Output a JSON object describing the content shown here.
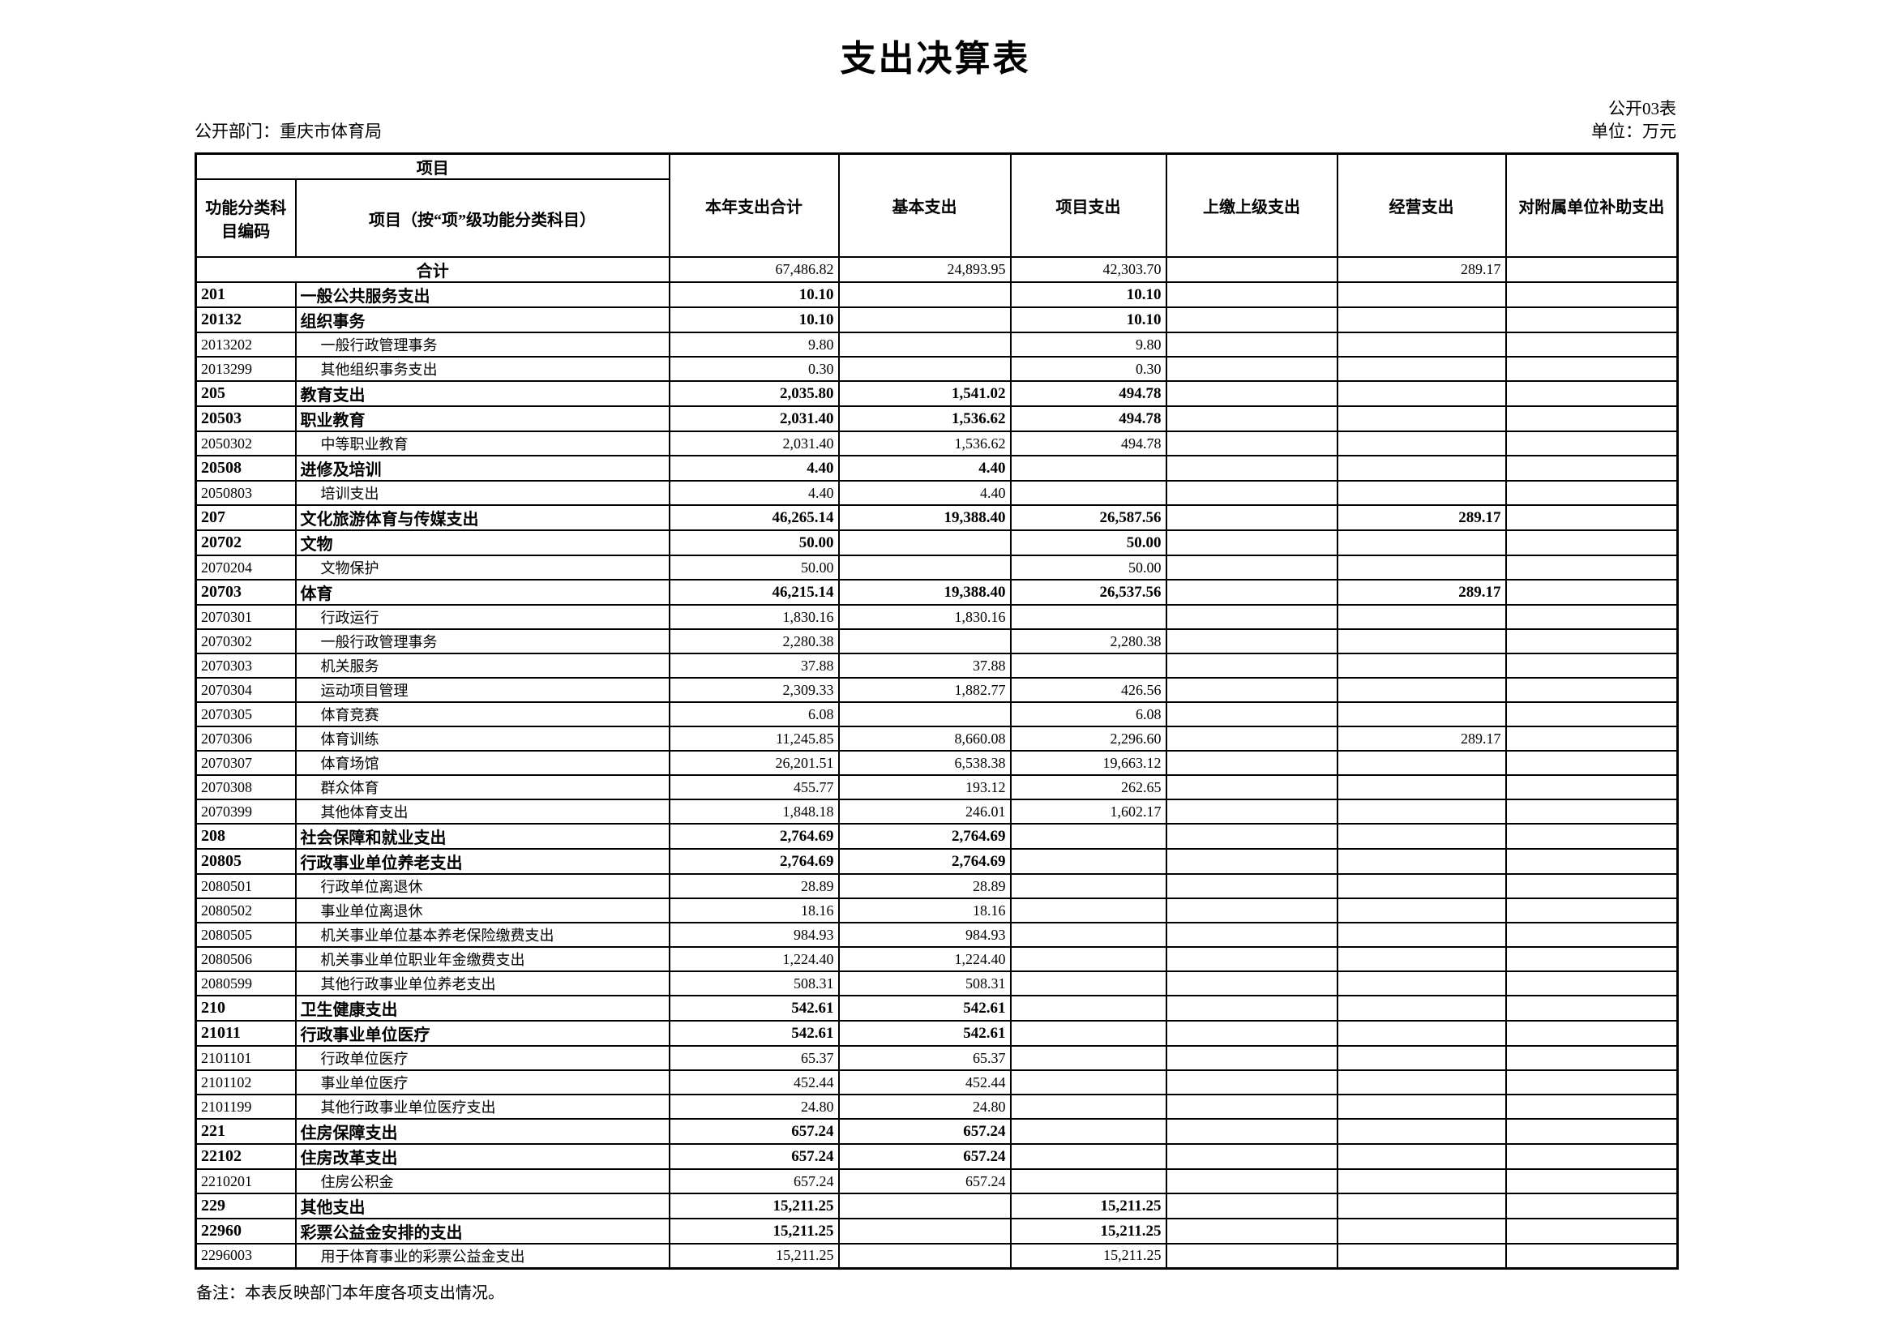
{
  "title": "支出决算表",
  "meta": {
    "table_code": "公开03表",
    "department": "公开部门：重庆市体育局",
    "unit": "单位：万元"
  },
  "table": {
    "header": {
      "group_project": "项目",
      "code": "功能分类科目编码",
      "name": "项目（按“项”级功能分类科目）",
      "total": "本年支出合计",
      "basic": "基本支出",
      "project": "项目支出",
      "upper": "上缴上级支出",
      "operating": "经营支出",
      "subsidy": "对附属单位补助支出"
    },
    "rows": [
      {
        "level": "total",
        "code": "",
        "name": "合计",
        "total": "67,486.82",
        "basic": "24,893.95",
        "project": "42,303.70",
        "upper": "",
        "operating": "289.17",
        "subsidy": ""
      },
      {
        "level": "l1",
        "code": "201",
        "name": "一般公共服务支出",
        "total": "10.10",
        "basic": "",
        "project": "10.10",
        "upper": "",
        "operating": "",
        "subsidy": ""
      },
      {
        "level": "l2",
        "code": "20132",
        "name": "组织事务",
        "total": "10.10",
        "basic": "",
        "project": "10.10",
        "upper": "",
        "operating": "",
        "subsidy": ""
      },
      {
        "level": "l3",
        "code": "2013202",
        "name": "一般行政管理事务",
        "total": "9.80",
        "basic": "",
        "project": "9.80",
        "upper": "",
        "operating": "",
        "subsidy": ""
      },
      {
        "level": "l3",
        "code": "2013299",
        "name": "其他组织事务支出",
        "total": "0.30",
        "basic": "",
        "project": "0.30",
        "upper": "",
        "operating": "",
        "subsidy": ""
      },
      {
        "level": "l1",
        "code": "205",
        "name": "教育支出",
        "total": "2,035.80",
        "basic": "1,541.02",
        "project": "494.78",
        "upper": "",
        "operating": "",
        "subsidy": ""
      },
      {
        "level": "l2",
        "code": "20503",
        "name": "职业教育",
        "total": "2,031.40",
        "basic": "1,536.62",
        "project": "494.78",
        "upper": "",
        "operating": "",
        "subsidy": ""
      },
      {
        "level": "l3",
        "code": "2050302",
        "name": "中等职业教育",
        "total": "2,031.40",
        "basic": "1,536.62",
        "project": "494.78",
        "upper": "",
        "operating": "",
        "subsidy": ""
      },
      {
        "level": "l2",
        "code": "20508",
        "name": "进修及培训",
        "total": "4.40",
        "basic": "4.40",
        "project": "",
        "upper": "",
        "operating": "",
        "subsidy": ""
      },
      {
        "level": "l3",
        "code": "2050803",
        "name": "培训支出",
        "total": "4.40",
        "basic": "4.40",
        "project": "",
        "upper": "",
        "operating": "",
        "subsidy": ""
      },
      {
        "level": "l1",
        "code": "207",
        "name": "文化旅游体育与传媒支出",
        "total": "46,265.14",
        "basic": "19,388.40",
        "project": "26,587.56",
        "upper": "",
        "operating": "289.17",
        "subsidy": ""
      },
      {
        "level": "l2",
        "code": "20702",
        "name": "文物",
        "total": "50.00",
        "basic": "",
        "project": "50.00",
        "upper": "",
        "operating": "",
        "subsidy": ""
      },
      {
        "level": "l3",
        "code": "2070204",
        "name": "文物保护",
        "total": "50.00",
        "basic": "",
        "project": "50.00",
        "upper": "",
        "operating": "",
        "subsidy": ""
      },
      {
        "level": "l2",
        "code": "20703",
        "name": "体育",
        "total": "46,215.14",
        "basic": "19,388.40",
        "project": "26,537.56",
        "upper": "",
        "operating": "289.17",
        "subsidy": ""
      },
      {
        "level": "l3",
        "code": "2070301",
        "name": "行政运行",
        "total": "1,830.16",
        "basic": "1,830.16",
        "project": "",
        "upper": "",
        "operating": "",
        "subsidy": ""
      },
      {
        "level": "l3",
        "code": "2070302",
        "name": "一般行政管理事务",
        "total": "2,280.38",
        "basic": "",
        "project": "2,280.38",
        "upper": "",
        "operating": "",
        "subsidy": ""
      },
      {
        "level": "l3",
        "code": "2070303",
        "name": "机关服务",
        "total": "37.88",
        "basic": "37.88",
        "project": "",
        "upper": "",
        "operating": "",
        "subsidy": ""
      },
      {
        "level": "l3",
        "code": "2070304",
        "name": "运动项目管理",
        "total": "2,309.33",
        "basic": "1,882.77",
        "project": "426.56",
        "upper": "",
        "operating": "",
        "subsidy": ""
      },
      {
        "level": "l3",
        "code": "2070305",
        "name": "体育竞赛",
        "total": "6.08",
        "basic": "",
        "project": "6.08",
        "upper": "",
        "operating": "",
        "subsidy": ""
      },
      {
        "level": "l3",
        "code": "2070306",
        "name": "体育训练",
        "total": "11,245.85",
        "basic": "8,660.08",
        "project": "2,296.60",
        "upper": "",
        "operating": "289.17",
        "subsidy": ""
      },
      {
        "level": "l3",
        "code": "2070307",
        "name": "体育场馆",
        "total": "26,201.51",
        "basic": "6,538.38",
        "project": "19,663.12",
        "upper": "",
        "operating": "",
        "subsidy": ""
      },
      {
        "level": "l3",
        "code": "2070308",
        "name": "群众体育",
        "total": "455.77",
        "basic": "193.12",
        "project": "262.65",
        "upper": "",
        "operating": "",
        "subsidy": ""
      },
      {
        "level": "l3",
        "code": "2070399",
        "name": "其他体育支出",
        "total": "1,848.18",
        "basic": "246.01",
        "project": "1,602.17",
        "upper": "",
        "operating": "",
        "subsidy": ""
      },
      {
        "level": "l1",
        "code": "208",
        "name": "社会保障和就业支出",
        "total": "2,764.69",
        "basic": "2,764.69",
        "project": "",
        "upper": "",
        "operating": "",
        "subsidy": ""
      },
      {
        "level": "l2",
        "code": "20805",
        "name": "行政事业单位养老支出",
        "total": "2,764.69",
        "basic": "2,764.69",
        "project": "",
        "upper": "",
        "operating": "",
        "subsidy": ""
      },
      {
        "level": "l3",
        "code": "2080501",
        "name": "行政单位离退休",
        "total": "28.89",
        "basic": "28.89",
        "project": "",
        "upper": "",
        "operating": "",
        "subsidy": ""
      },
      {
        "level": "l3",
        "code": "2080502",
        "name": "事业单位离退休",
        "total": "18.16",
        "basic": "18.16",
        "project": "",
        "upper": "",
        "operating": "",
        "subsidy": ""
      },
      {
        "level": "l3",
        "code": "2080505",
        "name": "机关事业单位基本养老保险缴费支出",
        "total": "984.93",
        "basic": "984.93",
        "project": "",
        "upper": "",
        "operating": "",
        "subsidy": ""
      },
      {
        "level": "l3",
        "code": "2080506",
        "name": "机关事业单位职业年金缴费支出",
        "total": "1,224.40",
        "basic": "1,224.40",
        "project": "",
        "upper": "",
        "operating": "",
        "subsidy": ""
      },
      {
        "level": "l3",
        "code": "2080599",
        "name": "其他行政事业单位养老支出",
        "total": "508.31",
        "basic": "508.31",
        "project": "",
        "upper": "",
        "operating": "",
        "subsidy": ""
      },
      {
        "level": "l1",
        "code": "210",
        "name": "卫生健康支出",
        "total": "542.61",
        "basic": "542.61",
        "project": "",
        "upper": "",
        "operating": "",
        "subsidy": ""
      },
      {
        "level": "l2",
        "code": "21011",
        "name": "行政事业单位医疗",
        "total": "542.61",
        "basic": "542.61",
        "project": "",
        "upper": "",
        "operating": "",
        "subsidy": ""
      },
      {
        "level": "l3",
        "code": "2101101",
        "name": "行政单位医疗",
        "total": "65.37",
        "basic": "65.37",
        "project": "",
        "upper": "",
        "operating": "",
        "subsidy": ""
      },
      {
        "level": "l3",
        "code": "2101102",
        "name": "事业单位医疗",
        "total": "452.44",
        "basic": "452.44",
        "project": "",
        "upper": "",
        "operating": "",
        "subsidy": ""
      },
      {
        "level": "l3",
        "code": "2101199",
        "name": "其他行政事业单位医疗支出",
        "total": "24.80",
        "basic": "24.80",
        "project": "",
        "upper": "",
        "operating": "",
        "subsidy": ""
      },
      {
        "level": "l1",
        "code": "221",
        "name": "住房保障支出",
        "total": "657.24",
        "basic": "657.24",
        "project": "",
        "upper": "",
        "operating": "",
        "subsidy": ""
      },
      {
        "level": "l2",
        "code": "22102",
        "name": "住房改革支出",
        "total": "657.24",
        "basic": "657.24",
        "project": "",
        "upper": "",
        "operating": "",
        "subsidy": ""
      },
      {
        "level": "l3",
        "code": "2210201",
        "name": "住房公积金",
        "total": "657.24",
        "basic": "657.24",
        "project": "",
        "upper": "",
        "operating": "",
        "subsidy": ""
      },
      {
        "level": "l1",
        "code": "229",
        "name": "其他支出",
        "total": "15,211.25",
        "basic": "",
        "project": "15,211.25",
        "upper": "",
        "operating": "",
        "subsidy": ""
      },
      {
        "level": "l2",
        "code": "22960",
        "name": "彩票公益金安排的支出",
        "total": "15,211.25",
        "basic": "",
        "project": "15,211.25",
        "upper": "",
        "operating": "",
        "subsidy": ""
      },
      {
        "level": "l3",
        "code": "2296003",
        "name": "用于体育事业的彩票公益金支出",
        "total": "15,211.25",
        "basic": "",
        "project": "15,211.25",
        "upper": "",
        "operating": "",
        "subsidy": ""
      }
    ]
  },
  "note": "备注：本表反映部门本年度各项支出情况。"
}
